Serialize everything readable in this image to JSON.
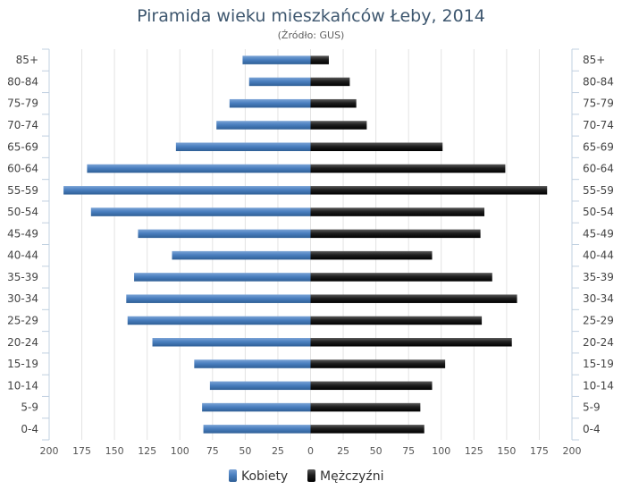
{
  "chart_data": {
    "type": "bar",
    "orientation": "horizontal-pyramid",
    "title": "Piramida wieku mieszkańców Łeby, 2014",
    "subtitle": "(Źródło: GUS)",
    "categories": [
      "85+",
      "80-84",
      "75-79",
      "70-74",
      "65-69",
      "60-64",
      "55-59",
      "50-54",
      "45-49",
      "40-44",
      "35-39",
      "30-34",
      "25-29",
      "20-24",
      "15-19",
      "10-14",
      "5-9",
      "0-4"
    ],
    "series": [
      {
        "name": "Kobiety",
        "color": "#4572a7",
        "values": [
          52,
          47,
          62,
          72,
          103,
          171,
          189,
          168,
          132,
          106,
          135,
          141,
          140,
          121,
          89,
          77,
          83,
          82
        ]
      },
      {
        "name": "Mężczyźni",
        "color": "#1a1a1a",
        "values": [
          14,
          30,
          35,
          43,
          101,
          149,
          181,
          133,
          130,
          93,
          139,
          158,
          131,
          154,
          103,
          93,
          84,
          87
        ]
      }
    ],
    "x_ticks": [
      "200",
      "175",
      "150",
      "125",
      "100",
      "75",
      "50",
      "25",
      "0",
      "25",
      "50",
      "75",
      "100",
      "125",
      "150",
      "175",
      "200"
    ],
    "xlim": [
      -200,
      200
    ],
    "grid": true,
    "legend_position": "bottom-center"
  }
}
